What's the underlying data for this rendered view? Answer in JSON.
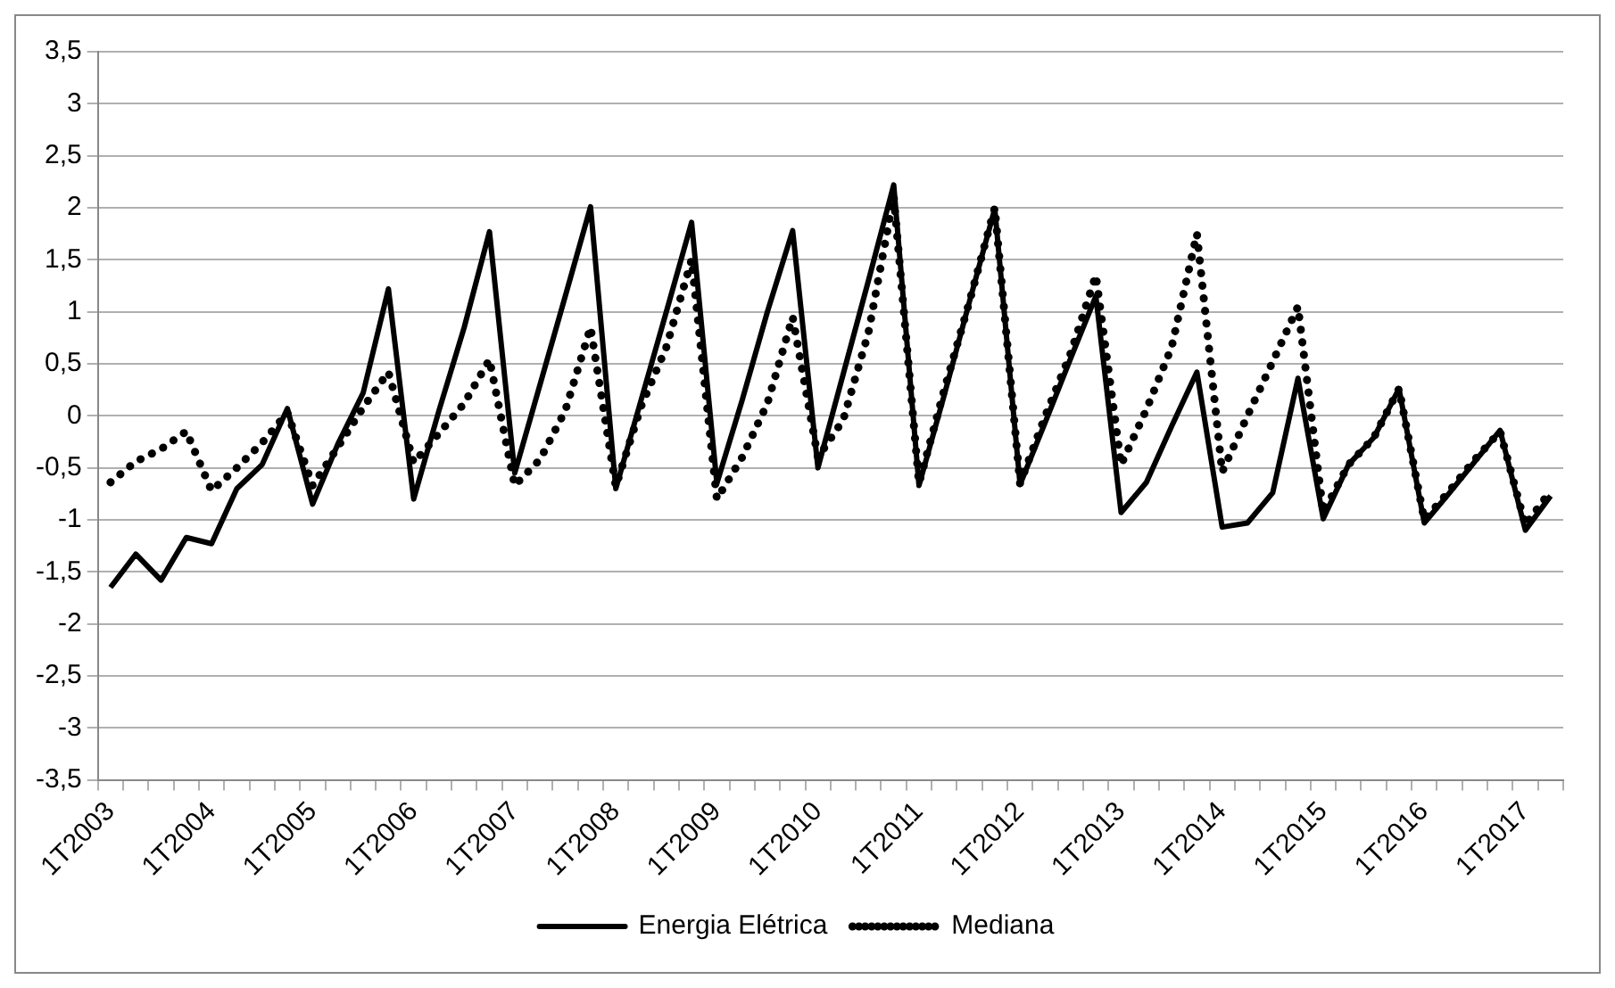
{
  "chart_data": {
    "type": "line",
    "categories": [
      "1T2003",
      null,
      null,
      null,
      "1T2004",
      null,
      null,
      null,
      "1T2005",
      null,
      null,
      null,
      "1T2006",
      null,
      null,
      null,
      "1T2007",
      null,
      null,
      null,
      "1T2008",
      null,
      null,
      null,
      "1T2009",
      null,
      null,
      null,
      "1T2010",
      null,
      null,
      null,
      "1T2011",
      null,
      null,
      null,
      "1T2012",
      null,
      null,
      null,
      "1T2013",
      null,
      null,
      null,
      "1T2014",
      null,
      null,
      null,
      "1T2015",
      null,
      null,
      null,
      "1T2016",
      null,
      null,
      null,
      "1T2017",
      null
    ],
    "series": [
      {
        "name": "Energia Elétrica",
        "color": "#000000",
        "line_style": "solid",
        "values": [
          -1.65,
          -1.33,
          -1.58,
          -1.17,
          -1.23,
          -0.7,
          -0.47,
          0.07,
          -0.85,
          -0.27,
          0.22,
          1.22,
          -0.8,
          0.05,
          0.85,
          1.77,
          -0.55,
          0.3,
          1.15,
          2.01,
          -0.7,
          0.15,
          1.0,
          1.86,
          -0.65,
          0.15,
          1.0,
          1.78,
          -0.5,
          0.4,
          1.3,
          2.22,
          -0.67,
          0.2,
          1.1,
          1.99,
          -0.66,
          -0.06,
          0.55,
          1.15,
          -0.93,
          -0.64,
          -0.1,
          0.42,
          -1.07,
          -1.03,
          -0.74,
          0.36,
          -0.99,
          -0.47,
          -0.21,
          0.26,
          -1.03,
          -0.74,
          -0.44,
          -0.14,
          -1.1,
          -0.77
        ]
      },
      {
        "name": "Mediana",
        "color": "#000000",
        "line_style": "dotted",
        "values": [
          -0.64,
          -0.44,
          -0.32,
          -0.15,
          -0.72,
          -0.5,
          -0.26,
          0.03,
          -0.67,
          -0.3,
          0.08,
          0.42,
          -0.45,
          -0.17,
          0.12,
          0.54,
          -0.67,
          -0.42,
          0.05,
          0.85,
          -0.68,
          0.09,
          0.66,
          1.5,
          -0.8,
          -0.4,
          0.12,
          0.95,
          -0.4,
          -0.04,
          0.8,
          2.11,
          -0.65,
          0.25,
          1.1,
          2.0,
          -0.65,
          0.0,
          0.6,
          1.35,
          -0.47,
          0.06,
          0.66,
          1.75,
          -0.54,
          0.0,
          0.52,
          1.05,
          -0.93,
          -0.47,
          -0.21,
          0.26,
          -1.0,
          -0.72,
          -0.42,
          -0.15,
          -1.05,
          -0.72
        ]
      }
    ],
    "ylim": [
      -3.5,
      3.5
    ],
    "yticks": [
      {
        "value": -3.5,
        "label": "-3,5"
      },
      {
        "value": -3,
        "label": "-3"
      },
      {
        "value": -2.5,
        "label": "-2,5"
      },
      {
        "value": -2,
        "label": "-2"
      },
      {
        "value": -1.5,
        "label": "-1,5"
      },
      {
        "value": -1,
        "label": "-1"
      },
      {
        "value": -0.5,
        "label": "-0,5"
      },
      {
        "value": 0,
        "label": "0"
      },
      {
        "value": 0.5,
        "label": "0,5"
      },
      {
        "value": 1,
        "label": "1"
      },
      {
        "value": 1.5,
        "label": "1,5"
      },
      {
        "value": 2,
        "label": "2"
      },
      {
        "value": 2.5,
        "label": "2,5"
      },
      {
        "value": 3,
        "label": "3"
      },
      {
        "value": 3.5,
        "label": "3,5"
      }
    ],
    "grid": "y",
    "legend": "bottom",
    "marker": "none"
  }
}
